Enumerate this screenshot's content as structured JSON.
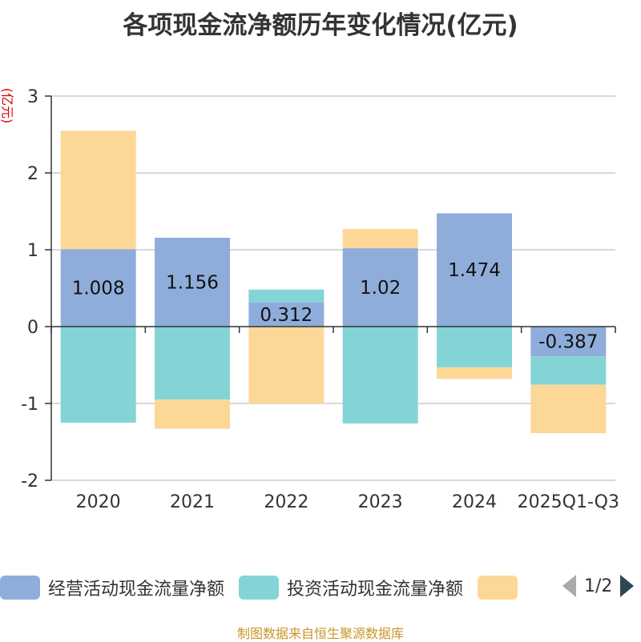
{
  "title": "各项现金流净额历年变化情况(亿元)",
  "y_unit": "(亿元)",
  "source": "制图数据来自恒生聚源数据库",
  "pager": {
    "current": "1/2"
  },
  "chart_data": {
    "type": "bar",
    "stacked": true,
    "categories": [
      "2020",
      "2021",
      "2022",
      "2023",
      "2024",
      "2025Q1-Q3"
    ],
    "ylim": [
      -2,
      3
    ],
    "yticks": [
      -2,
      -1,
      0,
      1,
      2,
      3
    ],
    "series": [
      {
        "name": "经营活动现金流量净额",
        "color": "#8fadda",
        "values": [
          1.008,
          1.156,
          0.312,
          1.02,
          1.474,
          -0.387
        ],
        "labels": [
          "1.008",
          "1.156",
          "0.312",
          "1.02",
          "1.474",
          "-0.387"
        ]
      },
      {
        "name": "投资活动现金流量净额",
        "color": "#84d4d6",
        "values": [
          -1.25,
          -0.95,
          0.17,
          -1.26,
          -0.53,
          -0.37
        ]
      },
      {
        "name": "",
        "color": "#fdd796",
        "values": [
          1.54,
          -0.38,
          -1.0,
          0.25,
          -0.15,
          -0.63
        ]
      }
    ]
  }
}
